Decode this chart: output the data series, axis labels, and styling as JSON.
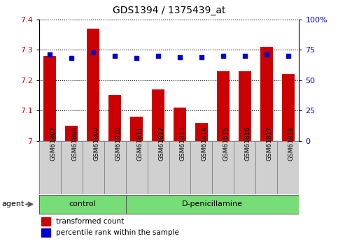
{
  "title": "GDS1394 / 1375439_at",
  "categories": [
    "GSM61807",
    "GSM61808",
    "GSM61809",
    "GSM61810",
    "GSM61811",
    "GSM61812",
    "GSM61813",
    "GSM61814",
    "GSM61815",
    "GSM61816",
    "GSM61817",
    "GSM61818"
  ],
  "bar_values": [
    7.28,
    7.05,
    7.37,
    7.15,
    7.08,
    7.17,
    7.11,
    7.06,
    7.23,
    7.23,
    7.31,
    7.22
  ],
  "percentile_values": [
    71,
    68,
    73,
    70,
    68,
    70,
    69,
    69,
    70,
    70,
    71,
    70
  ],
  "bar_color": "#cc0000",
  "percentile_color": "#0000cc",
  "ylim_left": [
    7.0,
    7.4
  ],
  "ylim_right": [
    0,
    100
  ],
  "yticks_left": [
    7.0,
    7.1,
    7.2,
    7.3,
    7.4
  ],
  "ytick_labels_left": [
    "7",
    "7.1",
    "7.2",
    "7.3",
    "7.4"
  ],
  "yticks_right": [
    0,
    25,
    50,
    75,
    100
  ],
  "ytick_labels_right": [
    "0",
    "25",
    "50",
    "75",
    "100%"
  ],
  "control_count": 4,
  "control_label": "control",
  "treatment_label": "D-penicillamine",
  "agent_label": "agent",
  "legend_bar_label": "transformed count",
  "legend_dot_label": "percentile rank within the sample",
  "group_color": "#77dd77",
  "tick_box_color": "#d0d0d0",
  "xlabel_color": "#cc0000",
  "ylabel_right_color": "#0000cc",
  "bar_width": 0.6,
  "figsize": [
    4.83,
    3.45
  ],
  "dpi": 100
}
